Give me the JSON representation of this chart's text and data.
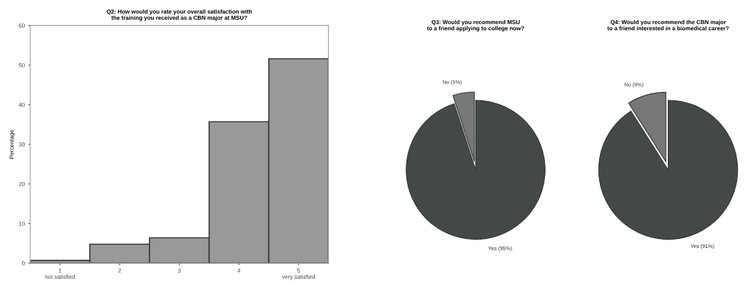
{
  "chart_data": [
    {
      "type": "bar",
      "title": "Q2: How would you rate your overall satisfaction with\nthe training you received as a CBN major at MSU?",
      "ylabel": "Percentage",
      "categories": [
        "1\nnot satisfied",
        "2",
        "3",
        "4",
        "5\nvery satisfied"
      ],
      "values": [
        0.7,
        4.8,
        6.4,
        35.7,
        51.6
      ],
      "color": "#999999",
      "ylim": [
        0,
        60
      ],
      "yticks": [
        0,
        10,
        20,
        30,
        40,
        50,
        60
      ],
      "grid": false,
      "legend": false
    },
    {
      "type": "pie",
      "title": "Q3: Would you recommend MSU\nto a friend applying to college now?",
      "categories": [
        "No",
        "Yes"
      ],
      "values": [
        5,
        95
      ],
      "value_labels": [
        "(5%)",
        "(95%)"
      ],
      "colors": [
        "#777777",
        "#444848"
      ],
      "legend": false
    },
    {
      "type": "pie",
      "title": "Q4: Would you recommend the CBN major\nto a friend interested in a biomedical career?",
      "categories": [
        "No",
        "Yes"
      ],
      "values": [
        9,
        91
      ],
      "value_labels": [
        "(9%)",
        "(91%)"
      ],
      "colors": [
        "#777777",
        "#444848"
      ],
      "legend": false
    }
  ]
}
